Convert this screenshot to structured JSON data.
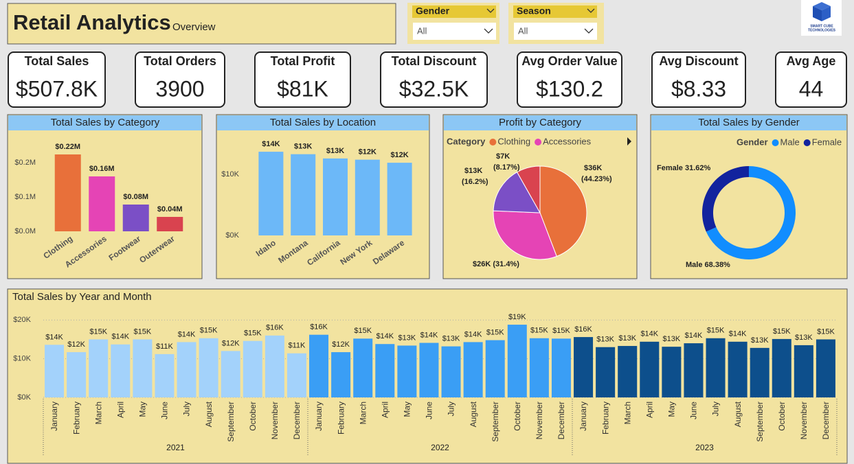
{
  "header": {
    "title": "Retail Analytics",
    "subtitle": "Overview"
  },
  "slicers": [
    {
      "label": "Gender",
      "value": "All"
    },
    {
      "label": "Season",
      "value": "All"
    }
  ],
  "logo": [
    "SMART CUBE",
    "TECHNOLOGIES"
  ],
  "kpis": [
    {
      "label": "Total Sales",
      "value": "$507.8K"
    },
    {
      "label": "Total Orders",
      "value": "3900"
    },
    {
      "label": "Total Profit",
      "value": "$81K"
    },
    {
      "label": "Total Discount",
      "value": "$32.5K"
    },
    {
      "label": "Avg Order Value",
      "value": "$130.2"
    },
    {
      "label": "Avg Discount",
      "value": "$8.33"
    },
    {
      "label": "Avg Age",
      "value": "44"
    }
  ],
  "chart_data": [
    {
      "type": "bar",
      "title": "Total Sales by Category",
      "categories": [
        "Clothing",
        "Accessories",
        "Footwear",
        "Outerwear"
      ],
      "values": [
        224000,
        160000,
        78000,
        42000
      ],
      "value_labels": [
        "$0.22M",
        "$0.16M",
        "$0.08M",
        "$0.04M"
      ],
      "colors": [
        "#e8703a",
        "#e544b5",
        "#7b4fc6",
        "#d9434f"
      ],
      "ylim": [
        0,
        250000
      ],
      "yticks": [
        {
          "value": 0,
          "label": "$0.0M"
        },
        {
          "value": 100000,
          "label": "$0.1M"
        },
        {
          "value": 200000,
          "label": "$0.2M"
        }
      ],
      "grid": false
    },
    {
      "type": "bar",
      "title": "Total Sales by Location",
      "categories": [
        "Idaho",
        "Montana",
        "California",
        "New York",
        "Delaware"
      ],
      "values": [
        13700,
        13300,
        12600,
        12400,
        11900
      ],
      "value_labels": [
        "$14K",
        "$13K",
        "$13K",
        "$12K",
        "$12K"
      ],
      "color": "#6cb8f8",
      "ylim": [
        0,
        15000
      ],
      "yticks": [
        {
          "value": 0,
          "label": "$0K"
        },
        {
          "value": 10000,
          "label": "$10K"
        }
      ],
      "grid": false
    },
    {
      "type": "pie",
      "title": "Profit by Category",
      "legend_title": "Category",
      "categories": [
        "Clothing",
        "Accessories",
        null,
        null
      ],
      "values": [
        35800,
        25500,
        13100,
        6620
      ],
      "value_labels": [
        "$36K",
        "$26K",
        "$13K",
        "$7K"
      ],
      "percent_labels": [
        "(44.23%)",
        "(31.4%)",
        "(16.2%)",
        "(8.17%)"
      ],
      "colors": [
        "#e8703a",
        "#e544b5",
        "#7b4fc6",
        "#d9434f"
      ]
    },
    {
      "type": "donut",
      "title": "Total Sales by Gender",
      "legend_title": "Gender",
      "categories": [
        "Male",
        "Female"
      ],
      "values": [
        68.38,
        31.62
      ],
      "value_labels": [
        "68.38%",
        "31.62%"
      ],
      "colors": [
        "#118dff",
        "#12239e"
      ]
    },
    {
      "type": "bar",
      "title": "Total Sales by Year and Month",
      "categories": [
        "January",
        "February",
        "March",
        "April",
        "May",
        "June",
        "July",
        "August",
        "September",
        "October",
        "November",
        "December"
      ],
      "series": [
        {
          "name": "2021",
          "color": "#a3d2fb",
          "values": [
            13600,
            11700,
            15000,
            13700,
            15000,
            11200,
            14300,
            15300,
            12000,
            14600,
            16000,
            11400
          ],
          "value_labels": [
            "$14K",
            "$12K",
            "$15K",
            "$14K",
            "$15K",
            "$11K",
            "$14K",
            "$15K",
            "$12K",
            "$15K",
            "$16K",
            "$11K"
          ]
        },
        {
          "name": "2022",
          "color": "#3a9ef5",
          "values": [
            16200,
            11700,
            15200,
            13800,
            13400,
            14100,
            13200,
            14300,
            14800,
            18800,
            15300,
            15200
          ],
          "value_labels": [
            "$16K",
            "$12K",
            "$15K",
            "$14K",
            "$13K",
            "$14K",
            "$13K",
            "$14K",
            "$15K",
            "$19K",
            "$15K",
            "$15K"
          ]
        },
        {
          "name": "2023",
          "color": "#0d4f8c",
          "values": [
            15600,
            13000,
            13300,
            14400,
            13100,
            14000,
            15300,
            14400,
            12800,
            15100,
            13500,
            15000
          ],
          "value_labels": [
            "$16K",
            "$13K",
            "$13K",
            "$14K",
            "$13K",
            "$14K",
            "$15K",
            "$14K",
            "$13K",
            "$15K",
            "$13K",
            "$15K"
          ]
        }
      ],
      "ylim": [
        0,
        22000
      ],
      "yticks": [
        {
          "value": 0,
          "label": "$0K"
        },
        {
          "value": 10000,
          "label": "$10K"
        },
        {
          "value": 20000,
          "label": "$20K"
        }
      ],
      "grid": true
    }
  ]
}
